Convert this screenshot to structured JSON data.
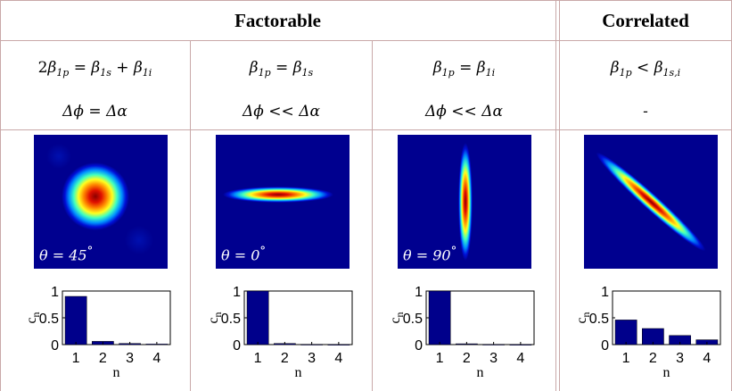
{
  "headers": {
    "factorable": "Factorable",
    "correlated": "Correlated"
  },
  "columns": [
    {
      "condition_pre": "2",
      "condition_main": "β",
      "condition_sub": "1p",
      "condition_rest": " = β",
      "condition_sub2": "1s",
      "condition_rest2": " + β",
      "condition_sub3": "1i",
      "condition_rest3": "",
      "phase": "Δϕ = Δα",
      "theta": "θ = 45",
      "deg": "°"
    },
    {
      "condition_pre": "",
      "condition_main": "β",
      "condition_sub": "1p",
      "condition_rest": " = β",
      "condition_sub2": "1s",
      "condition_rest2": "",
      "condition_sub3": "",
      "condition_rest3": "",
      "phase": "Δϕ << Δα",
      "theta": "θ = 0",
      "deg": "°"
    },
    {
      "condition_pre": "",
      "condition_main": "β",
      "condition_sub": "1p",
      "condition_rest": " = β",
      "condition_sub2": "1i",
      "condition_rest2": "",
      "condition_sub3": "",
      "condition_rest3": "",
      "phase": "Δϕ << Δα",
      "theta": "θ = 90",
      "deg": "°"
    },
    {
      "condition_pre": "",
      "condition_main": "β",
      "condition_sub": "1p",
      "condition_rest": " < β",
      "condition_sub2": "1s,i",
      "condition_rest2": "",
      "condition_sub3": "",
      "condition_rest3": "",
      "phase": "-",
      "theta": "",
      "deg": ""
    }
  ],
  "colors": {
    "heatmap_background": "#00008f",
    "bar_fill": "#00008b",
    "grid_lines": "#c9a8a8"
  },
  "chart_data": [
    {
      "type": "bar",
      "categories": [
        "1",
        "2",
        "3",
        "4"
      ],
      "values": [
        0.9,
        0.06,
        0.02,
        0.01
      ],
      "xlabel": "n",
      "ylabel": "c_n",
      "ylim": [
        0,
        1
      ],
      "yticks": [
        "0",
        "0.5",
        "1"
      ]
    },
    {
      "type": "bar",
      "categories": [
        "1",
        "2",
        "3",
        "4"
      ],
      "values": [
        1.0,
        0.02,
        0.005,
        0.003
      ],
      "xlabel": "n",
      "ylabel": "c_n",
      "ylim": [
        0,
        1
      ],
      "yticks": [
        "0",
        "0.5",
        "1"
      ]
    },
    {
      "type": "bar",
      "categories": [
        "1",
        "2",
        "3",
        "4"
      ],
      "values": [
        1.0,
        0.015,
        0.005,
        0.003
      ],
      "xlabel": "n",
      "ylabel": "c_n",
      "ylim": [
        0,
        1
      ],
      "yticks": [
        "0",
        "0.5",
        "1"
      ]
    },
    {
      "type": "bar",
      "categories": [
        "1",
        "2",
        "3",
        "4"
      ],
      "values": [
        0.46,
        0.3,
        0.17,
        0.09
      ],
      "xlabel": "n",
      "ylabel": "c_n",
      "ylim": [
        0,
        1
      ],
      "yticks": [
        "0",
        "0.5",
        "1"
      ]
    }
  ]
}
